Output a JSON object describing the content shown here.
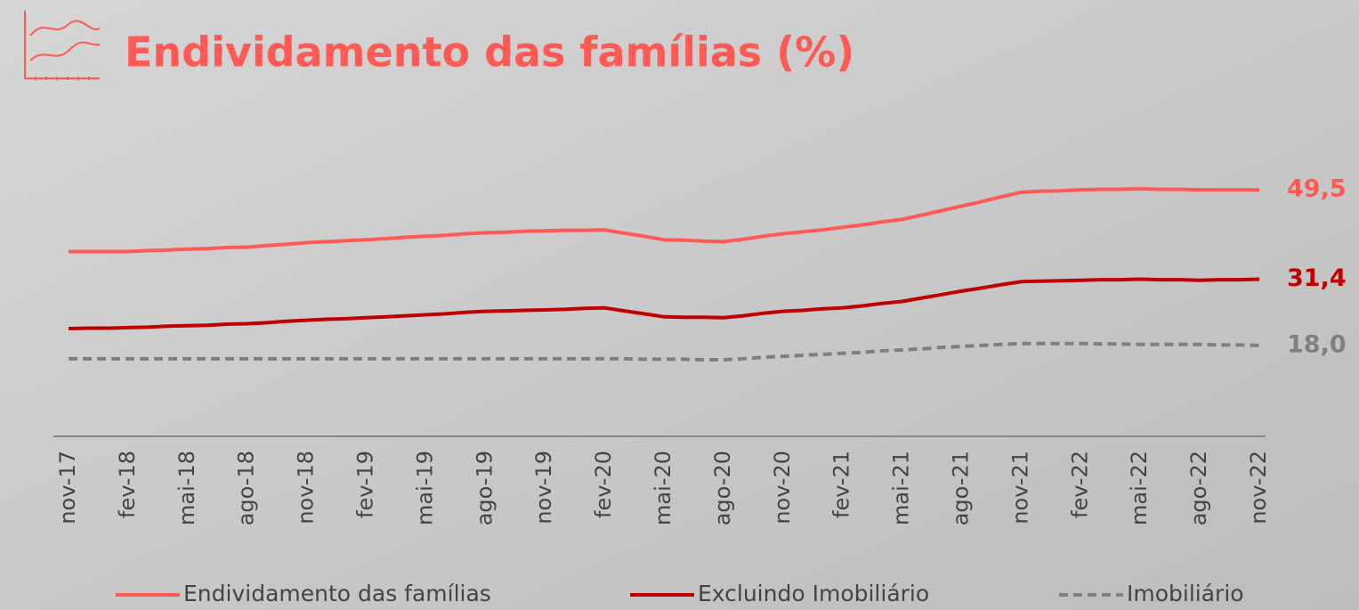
{
  "chart_data": {
    "type": "line",
    "title": "Endividamento das famílias (%)",
    "categories": [
      "nov-17",
      null,
      null,
      "fev-18",
      null,
      null,
      "mai-18",
      null,
      null,
      "ago-18",
      null,
      null,
      "nov-18",
      null,
      null,
      "fev-19",
      null,
      null,
      "mai-19",
      null,
      null,
      "ago-19",
      null,
      null,
      "nov-19",
      null,
      null,
      "fev-20",
      null,
      null,
      "mai-20",
      null,
      null,
      "ago-20",
      null,
      null,
      "nov-20",
      null,
      null,
      "fev-21",
      null,
      null,
      "mai-21",
      null,
      null,
      "ago-21",
      null,
      null,
      "nov-21",
      null,
      null,
      "fev-22",
      null,
      null,
      "mai-22",
      null,
      null,
      "ago-22",
      null,
      null,
      "nov-22"
    ],
    "series": [
      {
        "name": "Endividamento das famílias",
        "color": "#ff5a55",
        "dash": false,
        "values": [
          37.0,
          37.0,
          37.0,
          37.0,
          37.2,
          37.3,
          37.5,
          37.6,
          37.8,
          37.9,
          38.2,
          38.5,
          38.8,
          39.0,
          39.2,
          39.4,
          39.6,
          39.9,
          40.1,
          40.3,
          40.6,
          40.8,
          40.9,
          41.1,
          41.2,
          41.3,
          41.3,
          41.4,
          40.7,
          40.1,
          39.4,
          39.3,
          39.1,
          39.0,
          39.5,
          40.1,
          40.6,
          41.0,
          41.4,
          41.9,
          42.4,
          43.0,
          43.5,
          44.4,
          45.3,
          46.2,
          47.1,
          48.1,
          49.0,
          49.2,
          49.3,
          49.5,
          49.6,
          49.6,
          49.7,
          49.6,
          49.6,
          49.5,
          49.5,
          49.5,
          49.5
        ],
        "value_labels": [
          null,
          null,
          null,
          null,
          null,
          null,
          null,
          null,
          null,
          null,
          null,
          null,
          null,
          null,
          null,
          null,
          null,
          null,
          null,
          null,
          null,
          null,
          null,
          null,
          null,
          null,
          null,
          null,
          null,
          null,
          null,
          null,
          null,
          null,
          null,
          null,
          null,
          null,
          null,
          null,
          null,
          null,
          null,
          null,
          null,
          null,
          null,
          null,
          null,
          null,
          null,
          null,
          null,
          null,
          null,
          null,
          null,
          null,
          null,
          null,
          "49,5"
        ]
      },
      {
        "name": "Excluindo Imobiliário",
        "color": "#c00000",
        "dash": false,
        "values": [
          21.4,
          21.5,
          21.5,
          21.6,
          21.7,
          21.9,
          22.0,
          22.1,
          22.3,
          22.4,
          22.6,
          22.9,
          23.1,
          23.3,
          23.4,
          23.6,
          23.8,
          24.0,
          24.2,
          24.4,
          24.7,
          24.9,
          25.0,
          25.1,
          25.2,
          25.3,
          25.5,
          25.6,
          25.0,
          24.4,
          23.8,
          23.7,
          23.7,
          23.6,
          24.0,
          24.5,
          24.9,
          25.1,
          25.4,
          25.6,
          26.0,
          26.5,
          26.9,
          27.6,
          28.3,
          29.0,
          29.6,
          30.3,
          30.9,
          31.0,
          31.1,
          31.2,
          31.3,
          31.3,
          31.4,
          31.3,
          31.3,
          31.2,
          31.3,
          31.3,
          31.4
        ],
        "value_labels": [
          null,
          null,
          null,
          null,
          null,
          null,
          null,
          null,
          null,
          null,
          null,
          null,
          null,
          null,
          null,
          null,
          null,
          null,
          null,
          null,
          null,
          null,
          null,
          null,
          null,
          null,
          null,
          null,
          null,
          null,
          null,
          null,
          null,
          null,
          null,
          null,
          null,
          null,
          null,
          null,
          null,
          null,
          null,
          null,
          null,
          null,
          null,
          null,
          null,
          null,
          null,
          null,
          null,
          null,
          null,
          null,
          null,
          null,
          null,
          null,
          "31,4"
        ]
      },
      {
        "name": "Imobiliário",
        "color": "#7f7f7f",
        "dash": true,
        "values": [
          15.3,
          15.3,
          15.3,
          15.3,
          15.3,
          15.3,
          15.3,
          15.3,
          15.3,
          15.3,
          15.3,
          15.3,
          15.3,
          15.3,
          15.3,
          15.3,
          15.3,
          15.3,
          15.3,
          15.3,
          15.3,
          15.3,
          15.3,
          15.3,
          15.3,
          15.3,
          15.3,
          15.3,
          15.3,
          15.2,
          15.2,
          15.2,
          15.1,
          15.1,
          15.3,
          15.6,
          15.8,
          16.0,
          16.2,
          16.4,
          16.6,
          16.9,
          17.1,
          17.3,
          17.6,
          17.8,
          18.0,
          18.2,
          18.4,
          18.4,
          18.4,
          18.4,
          18.3,
          18.3,
          18.2,
          18.2,
          18.2,
          18.2,
          18.1,
          18.1,
          18.0
        ],
        "value_labels": [
          null,
          null,
          null,
          null,
          null,
          null,
          null,
          null,
          null,
          null,
          null,
          null,
          null,
          null,
          null,
          null,
          null,
          null,
          null,
          null,
          null,
          null,
          null,
          null,
          null,
          null,
          null,
          null,
          null,
          null,
          null,
          null,
          null,
          null,
          null,
          null,
          null,
          null,
          null,
          null,
          null,
          null,
          null,
          null,
          null,
          null,
          null,
          null,
          null,
          null,
          null,
          null,
          null,
          null,
          null,
          null,
          null,
          null,
          null,
          null,
          "18,0"
        ]
      }
    ]
  }
}
